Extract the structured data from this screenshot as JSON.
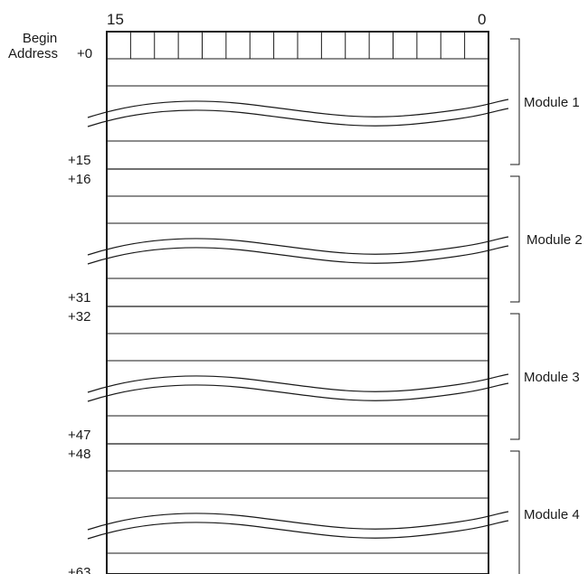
{
  "bit_labels": {
    "high": "15",
    "low": "0"
  },
  "begin_address": {
    "line1": "Begin",
    "line2": "Address"
  },
  "modules": [
    {
      "name": "Module 1",
      "start_offset": "+0",
      "end_offset": "+15"
    },
    {
      "name": "Module 2",
      "start_offset": "+16",
      "end_offset": "+31"
    },
    {
      "name": "Module 3",
      "start_offset": "+32",
      "end_offset": "+47"
    },
    {
      "name": "Module 4",
      "start_offset": "+48",
      "end_offset": "+63"
    }
  ],
  "bits_per_word": 16
}
